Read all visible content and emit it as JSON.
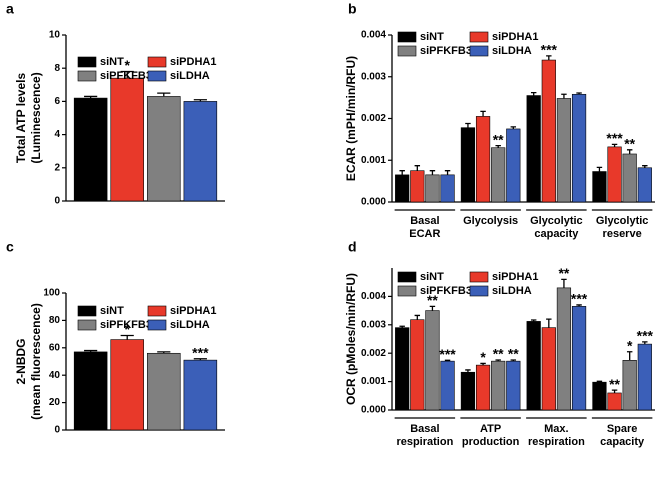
{
  "chart_data": [
    {
      "type": "bar",
      "panel_label": "a",
      "ylabel": [
        "Total ATP levels",
        "(Luminescence)"
      ],
      "categories": [
        null
      ],
      "ylim": [
        0,
        10
      ],
      "yticks": [
        0,
        2,
        4,
        6,
        8,
        10
      ],
      "series": [
        {
          "name": "siNT",
          "color": "#000000",
          "values": [
            6.2
          ],
          "errors": [
            0.1
          ],
          "significance": [
            null
          ]
        },
        {
          "name": "siPDHA1",
          "color": "#e8392a",
          "values": [
            7.4
          ],
          "errors": [
            0.4
          ],
          "significance": [
            "*"
          ]
        },
        {
          "name": "siPFKFB3",
          "color": "#808080",
          "values": [
            6.3
          ],
          "errors": [
            0.2
          ],
          "significance": [
            null
          ]
        },
        {
          "name": "siLDHA",
          "color": "#3b5fb8",
          "values": [
            6.0
          ],
          "errors": [
            0.1
          ],
          "significance": [
            null
          ]
        }
      ]
    },
    {
      "type": "bar",
      "panel_label": "b",
      "ylabel": [
        "ECAR (mPH/min/RFU)"
      ],
      "categories": [
        [
          "Basal",
          "ECAR"
        ],
        [
          "Glycolysis"
        ],
        [
          "Glycolytic",
          "capacity"
        ],
        [
          "Glycolytic",
          "reserve"
        ]
      ],
      "ylim": [
        0,
        0.004
      ],
      "yticks": [
        {
          "value": 0,
          "label": "0.000"
        },
        {
          "value": 0.001,
          "label": "0.001"
        },
        {
          "value": 0.002,
          "label": "0.002"
        },
        {
          "value": 0.003,
          "label": "0.003"
        },
        {
          "value": 0.004,
          "label": "0.004"
        }
      ],
      "series": [
        {
          "name": "siNT",
          "color": "#000000",
          "values": [
            0.00065,
            0.00178,
            0.00255,
            0.00073
          ],
          "errors": [
            0.0001,
            0.0001,
            7e-05,
            0.0001
          ],
          "significance": [
            null,
            null,
            null,
            null
          ]
        },
        {
          "name": "siPDHA1",
          "color": "#e8392a",
          "values": [
            0.00075,
            0.00205,
            0.0034,
            0.00132
          ],
          "errors": [
            0.00012,
            0.00012,
            0.0001,
            6e-05
          ],
          "significance": [
            null,
            null,
            "***",
            "***"
          ]
        },
        {
          "name": "siPFKFB3",
          "color": "#808080",
          "values": [
            0.00065,
            0.0013,
            0.00248,
            0.00115
          ],
          "errors": [
            0.0001,
            5e-05,
            0.0001,
            0.0001
          ],
          "significance": [
            null,
            "**",
            null,
            "**"
          ]
        },
        {
          "name": "siLDHA",
          "color": "#3b5fb8",
          "values": [
            0.00065,
            0.00175,
            0.00258,
            0.00082
          ],
          "errors": [
            0.0001,
            5e-05,
            3e-05,
            5e-05
          ],
          "significance": [
            null,
            null,
            null,
            null
          ]
        }
      ]
    },
    {
      "type": "bar",
      "panel_label": "c",
      "ylabel": [
        "2-NBDG",
        "(mean fluorescence)"
      ],
      "categories": [
        null
      ],
      "ylim": [
        0,
        100
      ],
      "yticks": [
        0,
        20,
        40,
        60,
        80,
        100
      ],
      "series": [
        {
          "name": "siNT",
          "color": "#000000",
          "values": [
            57
          ],
          "errors": [
            1
          ],
          "significance": [
            null
          ]
        },
        {
          "name": "siPDHA1",
          "color": "#e8392a",
          "values": [
            66
          ],
          "errors": [
            3
          ],
          "significance": [
            "*"
          ]
        },
        {
          "name": "siPFKFB3",
          "color": "#808080",
          "values": [
            56
          ],
          "errors": [
            1
          ],
          "significance": [
            null
          ]
        },
        {
          "name": "siLDHA",
          "color": "#3b5fb8",
          "values": [
            51
          ],
          "errors": [
            1
          ],
          "significance": [
            "***"
          ]
        }
      ]
    },
    {
      "type": "bar",
      "panel_label": "d",
      "ylabel": [
        "OCR (pMoles/min/RFU)"
      ],
      "categories": [
        [
          "Basal",
          "respiration"
        ],
        [
          "ATP",
          "production"
        ],
        [
          "Max.",
          "respiration"
        ],
        [
          "Spare",
          "capacity"
        ]
      ],
      "ylim": [
        0,
        0.005
      ],
      "yticks": [
        {
          "value": 0,
          "label": "0.000"
        },
        {
          "value": 0.001,
          "label": "0.001"
        },
        {
          "value": 0.002,
          "label": "0.002"
        },
        {
          "value": 0.003,
          "label": "0.003"
        },
        {
          "value": 0.004,
          "label": "0.004"
        }
      ],
      "series": [
        {
          "name": "siNT",
          "color": "#000000",
          "values": [
            0.0029,
            0.00133,
            0.00312,
            0.00098
          ],
          "errors": [
            5e-05,
            8e-05,
            5e-05,
            3e-05
          ],
          "significance": [
            null,
            null,
            null,
            null
          ]
        },
        {
          "name": "siPDHA1",
          "color": "#e8392a",
          "values": [
            0.00318,
            0.00158,
            0.0029,
            0.0006
          ],
          "errors": [
            0.00015,
            6e-05,
            0.0003,
            0.0001
          ],
          "significance": [
            null,
            "*",
            null,
            "**"
          ]
        },
        {
          "name": "siPFKFB3",
          "color": "#808080",
          "values": [
            0.0035,
            0.00172,
            0.0043,
            0.00175
          ],
          "errors": [
            0.00015,
            4e-05,
            0.0003,
            0.0003
          ],
          "significance": [
            "**",
            "**",
            "**",
            "*"
          ]
        },
        {
          "name": "siLDHA",
          "color": "#3b5fb8",
          "values": [
            0.00172,
            0.00172,
            0.00365,
            0.00232
          ],
          "errors": [
            3e-05,
            4e-05,
            5e-05,
            8e-05
          ],
          "significance": [
            "***",
            "**",
            "***",
            "***"
          ]
        }
      ]
    }
  ]
}
